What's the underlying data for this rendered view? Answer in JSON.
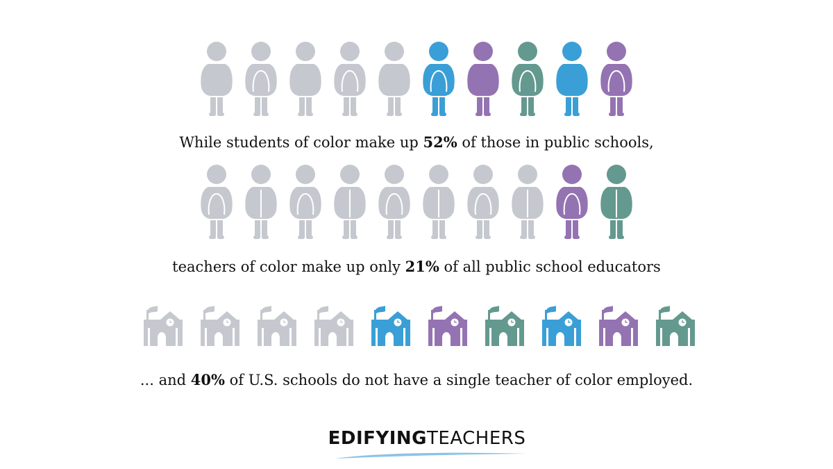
{
  "colors": {
    "gray": "#c5c8ce",
    "blue": "#3a9fd6",
    "purple": "#9473b2",
    "teal": "#64998f",
    "text": "#111111",
    "swoosh": "#8cc3e6"
  },
  "students": {
    "icon": "person-icon",
    "figures": [
      {
        "color": "gray",
        "style": "plain"
      },
      {
        "color": "gray",
        "style": "arch"
      },
      {
        "color": "gray",
        "style": "plain"
      },
      {
        "color": "gray",
        "style": "arch"
      },
      {
        "color": "gray",
        "style": "plain"
      },
      {
        "color": "blue",
        "style": "arch"
      },
      {
        "color": "purple",
        "style": "plain"
      },
      {
        "color": "teal",
        "style": "arch"
      },
      {
        "color": "blue",
        "style": "plain"
      },
      {
        "color": "purple",
        "style": "arch"
      }
    ]
  },
  "caption_students": {
    "before": "While students of color make up ",
    "highlight": "52%",
    "after": " of those in public schools,"
  },
  "teachers": {
    "icon": "person-icon",
    "figures": [
      {
        "color": "gray",
        "style": "arch"
      },
      {
        "color": "gray",
        "style": "split"
      },
      {
        "color": "gray",
        "style": "arch"
      },
      {
        "color": "gray",
        "style": "split"
      },
      {
        "color": "gray",
        "style": "arch"
      },
      {
        "color": "gray",
        "style": "split"
      },
      {
        "color": "gray",
        "style": "arch"
      },
      {
        "color": "gray",
        "style": "split"
      },
      {
        "color": "purple",
        "style": "arch"
      },
      {
        "color": "teal",
        "style": "split"
      }
    ]
  },
  "caption_teachers": {
    "before": "teachers of color make up only ",
    "highlight": "21%",
    "after": " of all public school educators"
  },
  "schools": {
    "icon": "school-icon",
    "colors": [
      "gray",
      "gray",
      "gray",
      "gray",
      "blue",
      "purple",
      "teal",
      "blue",
      "purple",
      "teal"
    ]
  },
  "caption_schools": {
    "before": "... and ",
    "highlight": "40%",
    "after": " of U.S. schools do not have a single teacher of color employed."
  },
  "logo": {
    "bold": "EDIFYING",
    "light": "TEACHERS"
  }
}
